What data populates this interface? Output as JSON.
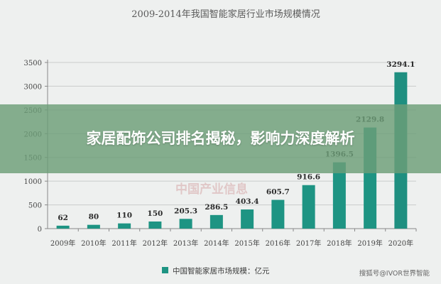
{
  "overlay": {
    "headline": "家居配饰公司排名揭秘，影响力深度解析"
  },
  "watermark": {
    "text": "中国产业信息",
    "credit": "搜狐号@IVOR世界智能"
  },
  "colors": {
    "bar": "#1e9483",
    "bar_last": "#1f8f80",
    "axis": "#888888",
    "grid": "#c9cccb",
    "overlay": "#6c9e78"
  },
  "chart_data": {
    "type": "bar",
    "title": "2009-2014年我国智能家居行业市场规模情况",
    "categories": [
      "2009年",
      "2010年",
      "2011年",
      "2012年",
      "2013年",
      "2014年",
      "2015年",
      "2016年",
      "2017年",
      "2018年",
      "2019年",
      "2020年"
    ],
    "series": [
      {
        "name": "中国智能家居市场规模：亿元",
        "values": [
          62,
          80,
          110,
          150,
          205.3,
          286.5,
          403.4,
          605.7,
          916.6,
          1396.5,
          2129.8,
          3294.1
        ],
        "labels": [
          "62",
          "80",
          "110",
          "150",
          "205.3",
          "286.5",
          "403.4",
          "605.7",
          "916.6",
          "1396.5",
          "2129.8",
          "3294.1"
        ]
      }
    ],
    "ylim": [
      0,
      3500
    ],
    "yticks": [
      0,
      500,
      1000,
      1500,
      2000,
      2500,
      3000,
      3500
    ],
    "grid": true,
    "legend_position": "bottom"
  }
}
